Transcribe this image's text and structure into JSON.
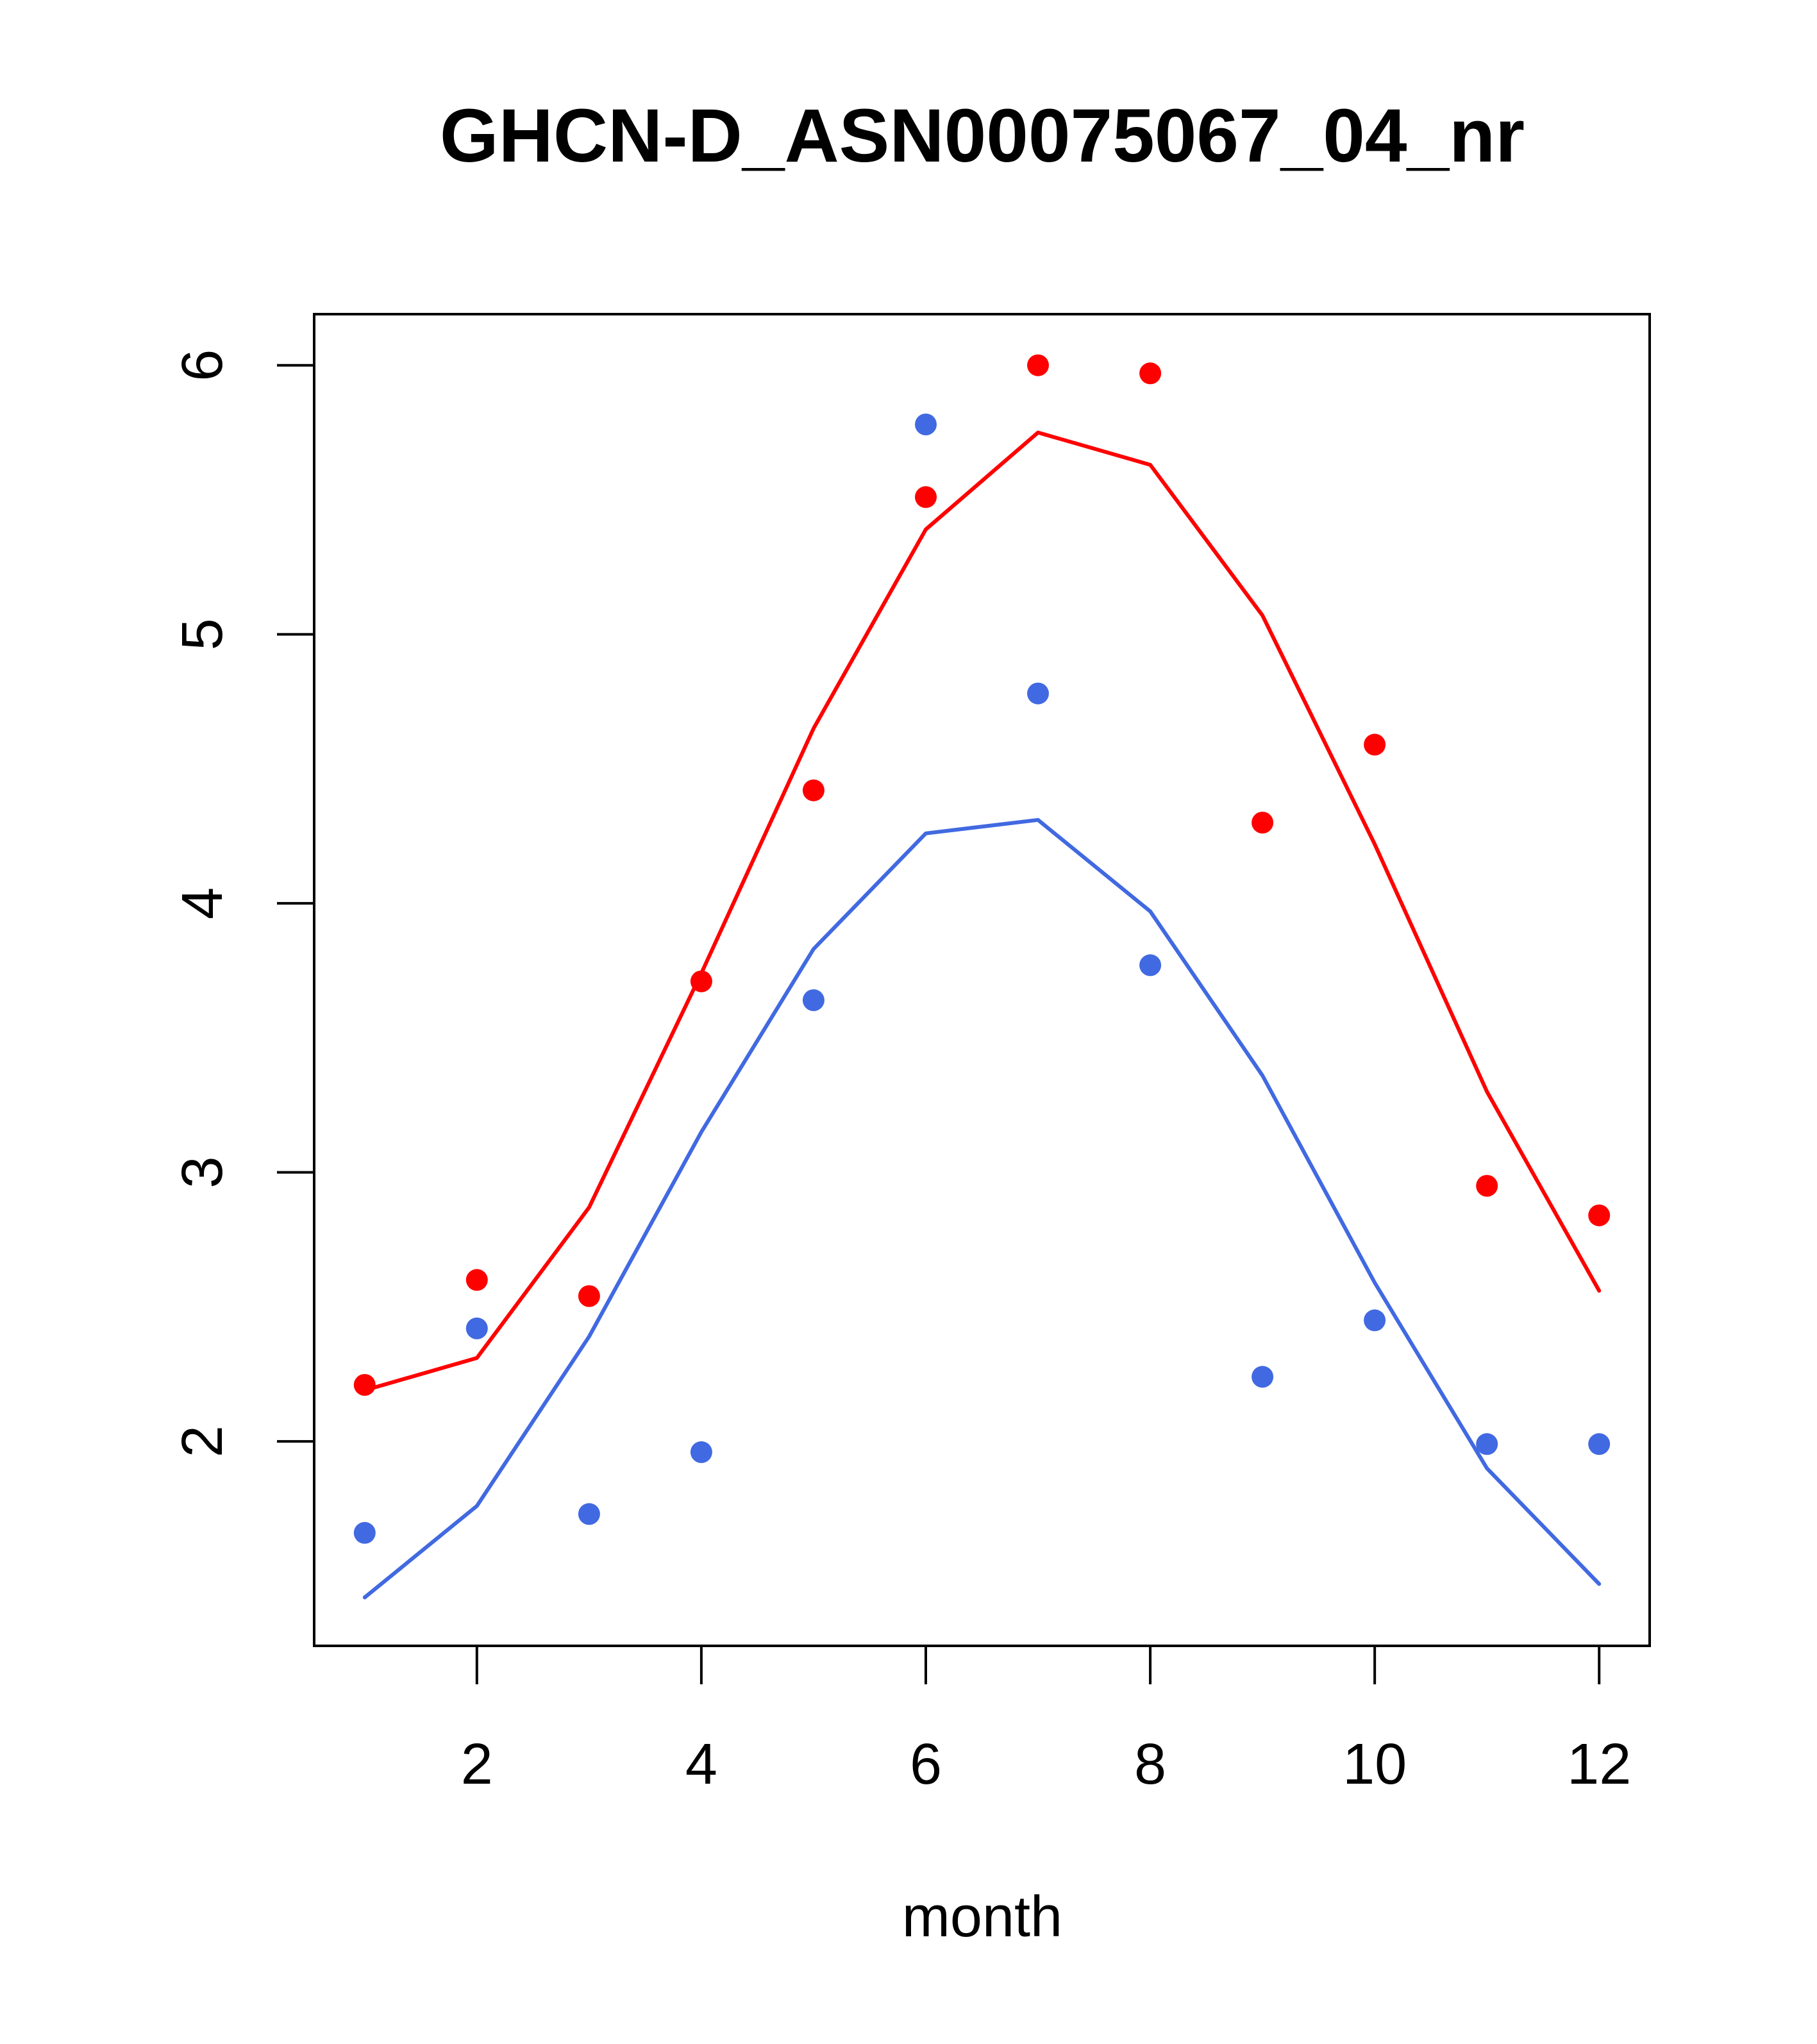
{
  "chart_data": {
    "type": "line",
    "title": "GHCN-D_ASN00075067_04_nr",
    "xlabel": "month",
    "ylabel": "",
    "xlim": [
      0.55,
      12.45
    ],
    "ylim": [
      1.24,
      6.19
    ],
    "x_ticks": [
      2,
      4,
      6,
      8,
      10,
      12
    ],
    "y_ticks": [
      2,
      3,
      4,
      5,
      6
    ],
    "grid": false,
    "legend": "none",
    "x": [
      1,
      2,
      3,
      4,
      5,
      6,
      7,
      8,
      9,
      10,
      11,
      12
    ],
    "series": [
      {
        "color": "#ff0000",
        "points": [
          2.21,
          2.6,
          2.54,
          3.71,
          4.42,
          5.51,
          6.0,
          5.97,
          4.3,
          4.59,
          2.95,
          2.84
        ],
        "line": [
          2.19,
          2.31,
          2.87,
          3.74,
          4.65,
          5.39,
          5.75,
          5.63,
          5.07,
          4.22,
          3.3,
          2.56
        ]
      },
      {
        "color": "#4169e1",
        "points": [
          1.66,
          2.42,
          1.73,
          1.96,
          3.64,
          5.78,
          4.78,
          3.77,
          2.24,
          2.45,
          1.99,
          1.99
        ],
        "line": [
          1.42,
          1.76,
          2.39,
          3.15,
          3.83,
          4.26,
          4.31,
          3.97,
          3.36,
          2.59,
          1.9,
          1.47
        ]
      }
    ]
  }
}
